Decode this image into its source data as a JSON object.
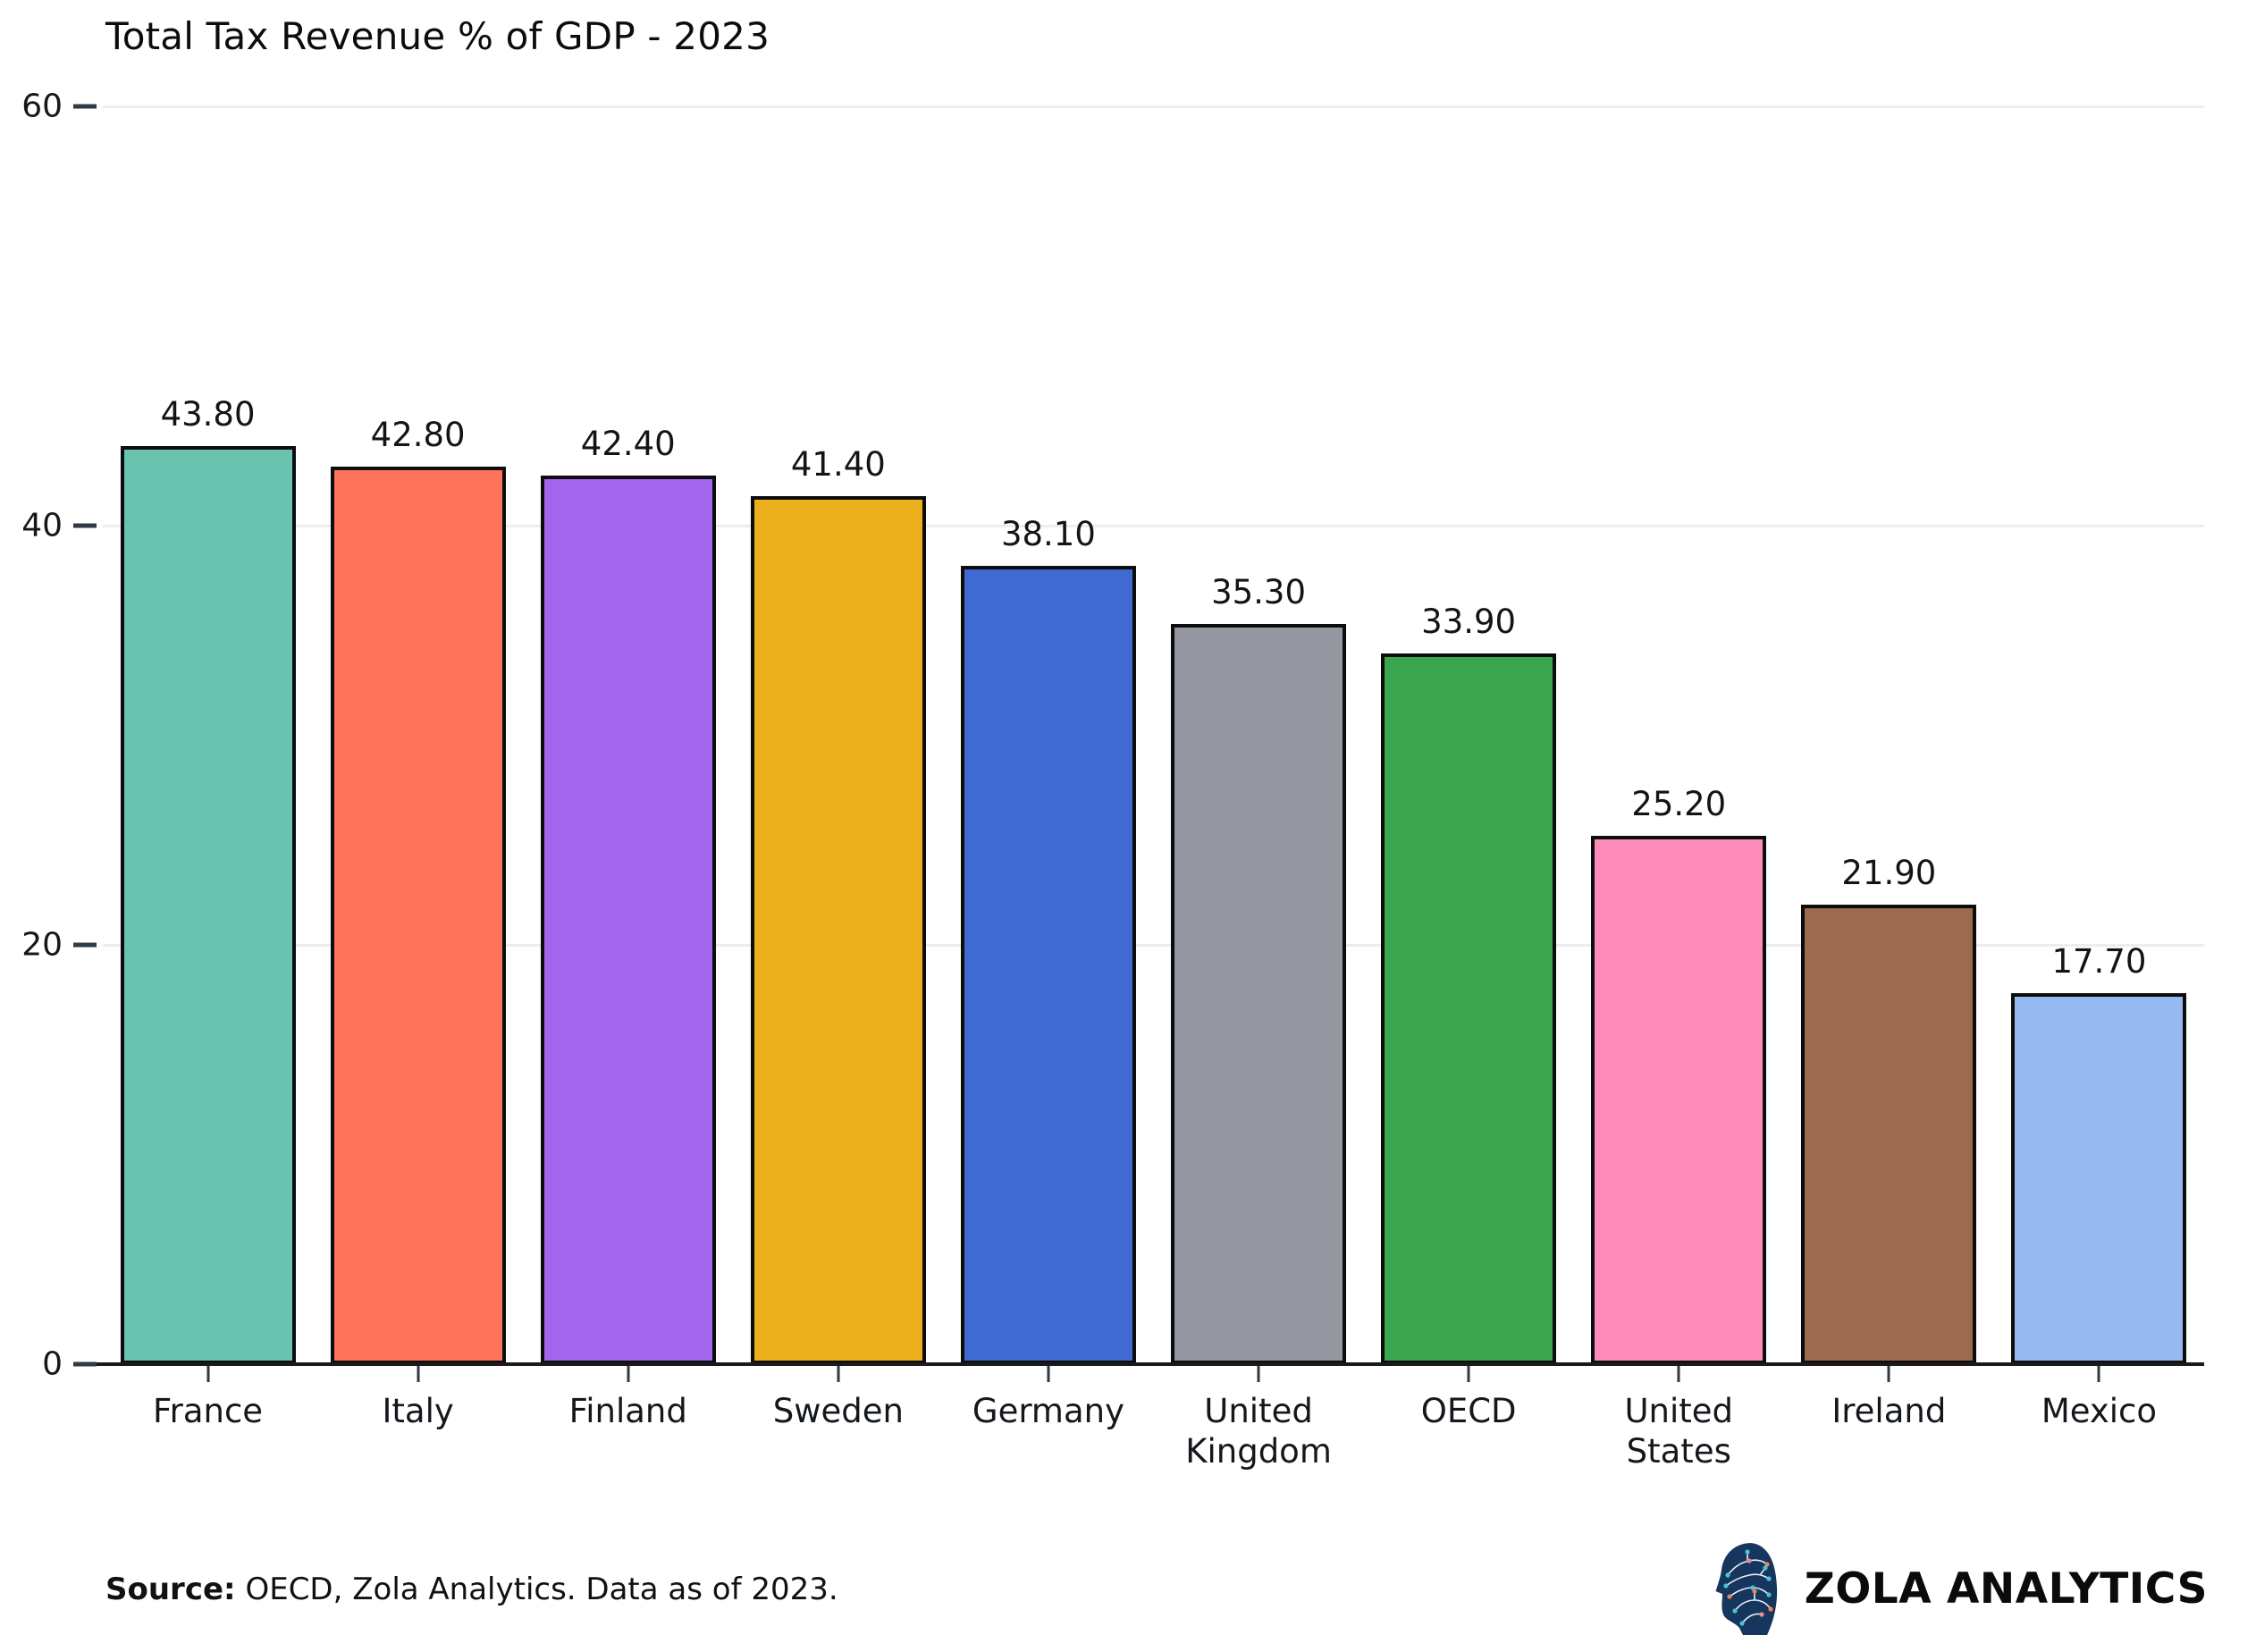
{
  "chart_data": {
    "type": "bar",
    "title": "Total Tax Revenue % of GDP - 2023",
    "categories": [
      "France",
      "Italy",
      "Finland",
      "Sweden",
      "Germany",
      "United Kingdom",
      "OECD",
      "United States",
      "Ireland",
      "Mexico"
    ],
    "values": [
      43.8,
      42.8,
      42.4,
      41.4,
      38.1,
      35.3,
      33.9,
      25.2,
      21.9,
      17.7
    ],
    "value_labels": [
      "43.80",
      "42.80",
      "42.40",
      "41.40",
      "38.10",
      "35.30",
      "33.90",
      "25.20",
      "21.90",
      "17.70"
    ],
    "bar_colors": [
      "#69c3ae",
      "#ff735c",
      "#a365ee",
      "#edb01d",
      "#4169d2",
      "#94979f",
      "#3ba64f",
      "#fd8cb8",
      "#9c6b4f",
      "#97b9f2"
    ],
    "bar_border_color": "#0d0d0d",
    "xlabel": "",
    "ylabel": "",
    "ylim": [
      0,
      60
    ],
    "yticks": [
      {
        "label": "60",
        "value": 60
      },
      {
        "label": "40",
        "value": 40
      },
      {
        "label": "20",
        "value": 20
      },
      {
        "label": "0",
        "value": 0
      }
    ],
    "gridline_values": [
      20,
      40,
      60
    ],
    "grid": true,
    "legend": false
  },
  "footer": {
    "source_label": "Source:",
    "source_text": " OECD, Zola Analytics. Data as of 2023.",
    "brand_name": "ZOLA ANALYTICS"
  },
  "logo_colors": {
    "head": "#17365d",
    "head_dark": "#102846",
    "trace": "#e8f2f8",
    "dot_teal": "#43c6d8",
    "dot_orange": "#ef8354",
    "dot_pink": "#e98a9a"
  }
}
